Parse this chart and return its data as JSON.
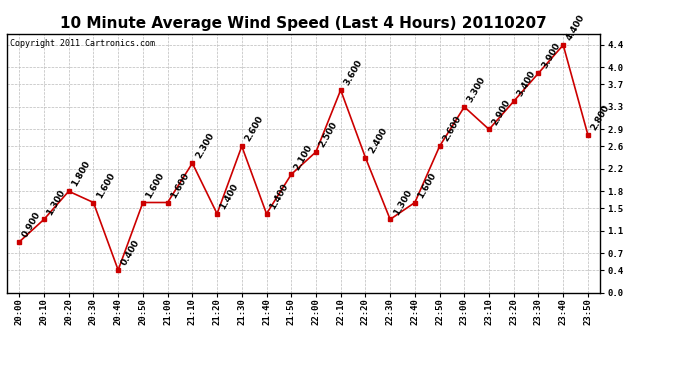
{
  "title": "10 Minute Average Wind Speed (Last 4 Hours) 20110207",
  "copyright": "Copyright 2011 Cartronics.com",
  "times": [
    "20:00",
    "20:10",
    "20:20",
    "20:30",
    "20:40",
    "20:50",
    "21:00",
    "21:10",
    "21:20",
    "21:30",
    "21:40",
    "21:50",
    "22:00",
    "22:10",
    "22:20",
    "22:30",
    "22:40",
    "22:50",
    "23:00",
    "23:10",
    "23:20",
    "23:30",
    "23:40",
    "23:50"
  ],
  "values": [
    0.9,
    1.3,
    1.8,
    1.6,
    0.4,
    1.6,
    1.6,
    2.3,
    1.4,
    2.6,
    1.4,
    2.1,
    2.5,
    3.6,
    2.4,
    1.3,
    1.6,
    2.6,
    3.3,
    2.9,
    3.4,
    3.9,
    4.4,
    2.8
  ],
  "line_color": "#cc0000",
  "marker_color": "#cc0000",
  "background_color": "#ffffff",
  "grid_color": "#bbbbbb",
  "ylim": [
    0.0,
    4.6
  ],
  "yticks": [
    0.0,
    0.4,
    0.7,
    1.1,
    1.5,
    1.8,
    2.2,
    2.6,
    2.9,
    3.3,
    3.7,
    4.0,
    4.4
  ],
  "title_fontsize": 11,
  "label_fontsize": 6.5,
  "annotation_fontsize": 6.5,
  "copyright_fontsize": 6
}
